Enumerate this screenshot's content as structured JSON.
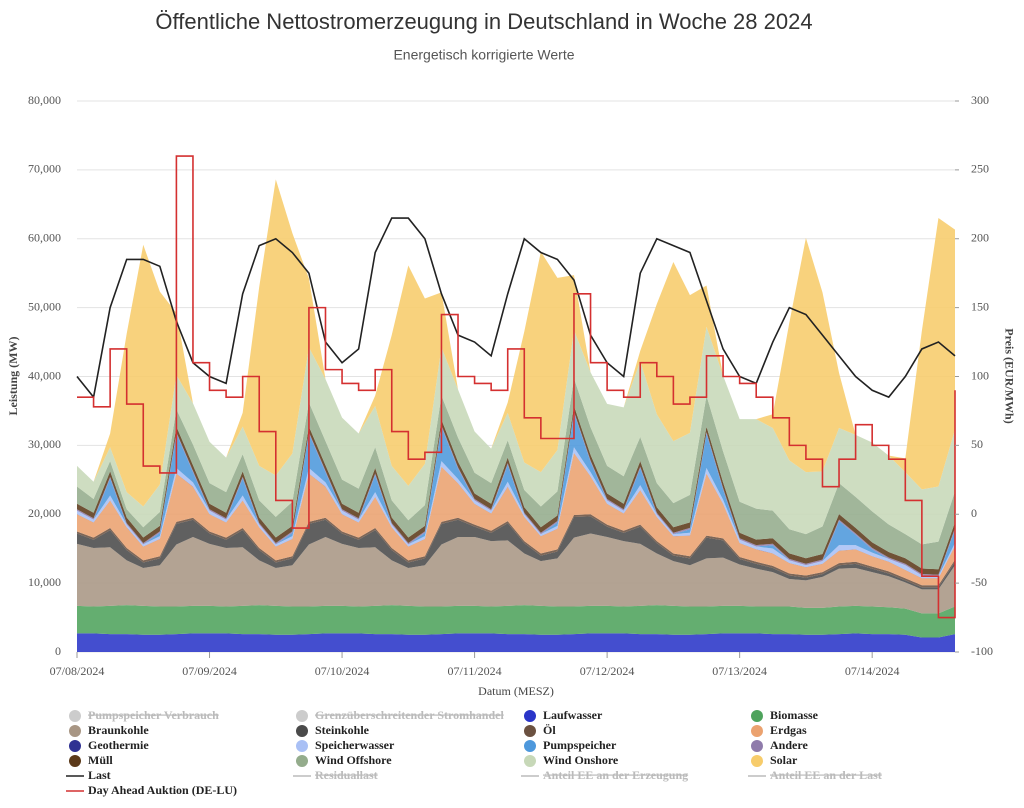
{
  "chart_data": {
    "type": "stacked-area",
    "title": "Öffentliche Nettostromerzeugung in Deutschland in Woche 28 2024",
    "subtitle": "Energetisch korrigierte Werte",
    "x_label": "Datum (MESZ)",
    "y_label": "Leistung (MW)",
    "y2_label": "Preis (EUR/MWh)",
    "x": [
      0,
      3,
      6,
      9,
      12,
      15,
      18,
      21,
      24,
      27,
      30,
      33,
      36,
      39,
      42,
      45,
      48,
      51,
      54,
      57,
      60,
      63,
      66,
      69,
      72,
      75,
      78,
      81,
      84,
      87,
      90,
      93,
      96,
      99,
      102,
      105,
      108,
      111,
      114,
      117,
      120,
      123,
      126,
      129,
      132,
      135,
      138,
      141,
      144,
      147,
      150,
      153,
      156,
      159
    ],
    "xlim": [
      0,
      159
    ],
    "xticks": [
      {
        "value": 0,
        "label": "07/08/2024"
      },
      {
        "value": 24,
        "label": "07/09/2024"
      },
      {
        "value": 48,
        "label": "07/10/2024"
      },
      {
        "value": 72,
        "label": "07/11/2024"
      },
      {
        "value": 96,
        "label": "07/12/2024"
      },
      {
        "value": 120,
        "label": "07/13/2024"
      },
      {
        "value": 144,
        "label": "07/14/2024"
      }
    ],
    "ylim": [
      0,
      80000
    ],
    "yticks": [
      0,
      {
        "value": 10000,
        "label": "10,000"
      },
      {
        "value": 20000,
        "label": "20,000"
      },
      {
        "value": 30000,
        "label": "30,000"
      },
      {
        "value": 40000,
        "label": "40,000"
      },
      {
        "value": 50000,
        "label": "50,000"
      },
      {
        "value": 60000,
        "label": "60,000"
      },
      {
        "value": 70000,
        "label": "70,000"
      },
      {
        "value": 80000,
        "label": "80,000"
      }
    ],
    "y2lim": [
      -100,
      300
    ],
    "y2ticks": [
      -100,
      -50,
      0,
      50,
      100,
      150,
      200,
      250,
      300
    ],
    "grid": true,
    "series": [
      {
        "name": "Pumpspeicher Verbrauch",
        "color": "#cccccc",
        "visible": false
      },
      {
        "name": "Grenzüberschreitender Stromhandel",
        "color": "#cccccc",
        "visible": false
      },
      {
        "name": "Laufwasser",
        "color": "#2a35c8",
        "kind": "area",
        "values": [
          2700,
          2700,
          2600,
          2600,
          2500,
          2500,
          2600,
          2700,
          2700,
          2700,
          2600,
          2600,
          2500,
          2500,
          2600,
          2700,
          2700,
          2700,
          2600,
          2600,
          2500,
          2500,
          2600,
          2700,
          2700,
          2700,
          2600,
          2600,
          2500,
          2500,
          2600,
          2700,
          2700,
          2700,
          2600,
          2600,
          2500,
          2500,
          2600,
          2700,
          2700,
          2700,
          2600,
          2600,
          2500,
          2500,
          2600,
          2700,
          2600,
          2600,
          2500,
          2100,
          2100,
          2600
        ]
      },
      {
        "name": "Biomasse",
        "color": "#4ea35c",
        "kind": "area",
        "values": [
          4000,
          3900,
          4100,
          4200,
          4200,
          4100,
          4000,
          4000,
          4000,
          3900,
          4100,
          4200,
          4200,
          4100,
          4000,
          4000,
          4000,
          3900,
          4100,
          4200,
          4200,
          4100,
          4000,
          4000,
          4000,
          3900,
          4100,
          4200,
          4200,
          4100,
          4000,
          4000,
          4000,
          3900,
          4100,
          4200,
          4200,
          4100,
          4000,
          4000,
          4000,
          3900,
          4000,
          4000,
          3900,
          3900,
          4000,
          4000,
          4000,
          3900,
          3800,
          3500,
          3500,
          4000
        ]
      },
      {
        "name": "Braunkohle",
        "color": "#a89684",
        "kind": "area",
        "values": [
          9000,
          8500,
          8500,
          6500,
          5500,
          6000,
          9000,
          10000,
          9000,
          8500,
          8500,
          6500,
          5500,
          6000,
          9000,
          10000,
          9000,
          8500,
          8500,
          6500,
          5500,
          6000,
          9000,
          10000,
          10000,
          9500,
          9500,
          7500,
          6500,
          7000,
          10000,
          10500,
          10000,
          9500,
          9000,
          7500,
          6500,
          6000,
          7000,
          7000,
          6000,
          5500,
          5000,
          4000,
          4000,
          4500,
          5500,
          5500,
          5000,
          4500,
          3800,
          3500,
          3500,
          6000
        ]
      },
      {
        "name": "Steinkohle",
        "color": "#4a4a4a",
        "kind": "area",
        "values": [
          1500,
          1200,
          2500,
          1500,
          800,
          1000,
          3000,
          2500,
          1500,
          1200,
          2500,
          1500,
          800,
          1000,
          3000,
          2500,
          1500,
          1200,
          2500,
          1500,
          800,
          1000,
          3000,
          2500,
          1500,
          1200,
          2500,
          1500,
          800,
          1000,
          3000,
          2500,
          1500,
          1200,
          2500,
          1500,
          800,
          1000,
          3000,
          2500,
          800,
          700,
          600,
          500,
          400,
          400,
          500,
          600,
          500,
          400,
          300,
          300,
          300,
          500
        ]
      },
      {
        "name": "Öl",
        "color": "#6b5140",
        "kind": "area",
        "values": [
          300,
          300,
          300,
          300,
          300,
          300,
          300,
          300,
          300,
          300,
          300,
          300,
          300,
          300,
          300,
          300,
          300,
          300,
          300,
          300,
          300,
          300,
          300,
          300,
          300,
          300,
          300,
          300,
          300,
          300,
          300,
          300,
          300,
          300,
          300,
          300,
          300,
          300,
          300,
          300,
          300,
          300,
          300,
          300,
          300,
          300,
          300,
          300,
          300,
          300,
          300,
          300,
          300,
          300
        ]
      },
      {
        "name": "Erdgas",
        "color": "#eba26f",
        "kind": "area",
        "values": [
          2500,
          2200,
          4000,
          3000,
          2000,
          2500,
          7000,
          4500,
          2500,
          2200,
          4000,
          3000,
          2000,
          2500,
          7000,
          4500,
          2500,
          2200,
          4500,
          3000,
          2000,
          2500,
          8000,
          5000,
          3000,
          2500,
          5000,
          3500,
          2500,
          3000,
          9000,
          5500,
          3000,
          2500,
          5000,
          3500,
          2500,
          3000,
          9000,
          5000,
          2000,
          1800,
          1800,
          1500,
          1200,
          1200,
          1800,
          1800,
          1500,
          1400,
          1200,
          1000,
          1000,
          2000
        ]
      },
      {
        "name": "Geothermie",
        "color": "#2f3192",
        "kind": "area",
        "values": [
          20,
          20,
          20,
          20,
          20,
          20,
          20,
          20,
          20,
          20,
          20,
          20,
          20,
          20,
          20,
          20,
          20,
          20,
          20,
          20,
          20,
          20,
          20,
          20,
          20,
          20,
          20,
          20,
          20,
          20,
          20,
          20,
          20,
          20,
          20,
          20,
          20,
          20,
          20,
          20,
          20,
          20,
          20,
          20,
          20,
          20,
          20,
          20,
          20,
          20,
          20,
          20,
          20,
          20
        ]
      },
      {
        "name": "Speicherwasser",
        "color": "#a9c0f5",
        "kind": "area",
        "values": [
          500,
          400,
          700,
          400,
          300,
          400,
          800,
          600,
          500,
          400,
          700,
          400,
          300,
          400,
          800,
          600,
          500,
          400,
          700,
          400,
          300,
          400,
          800,
          600,
          500,
          400,
          700,
          400,
          300,
          400,
          800,
          600,
          500,
          400,
          700,
          400,
          300,
          400,
          800,
          600,
          500,
          400,
          700,
          400,
          300,
          400,
          800,
          600,
          500,
          400,
          700,
          400,
          300,
          400
        ]
      },
      {
        "name": "Pumpspeicher",
        "color": "#4d98dc",
        "kind": "area",
        "values": [
          0,
          0,
          2500,
          0,
          0,
          500,
          5000,
          1500,
          0,
          0,
          2500,
          0,
          0,
          500,
          5000,
          1500,
          0,
          0,
          2500,
          0,
          0,
          500,
          5000,
          1500,
          0,
          0,
          2500,
          0,
          0,
          500,
          5000,
          1500,
          0,
          0,
          2500,
          0,
          0,
          500,
          5000,
          1500,
          0,
          0,
          500,
          0,
          0,
          0,
          3500,
          1500,
          500,
          0,
          0,
          0,
          0,
          2000
        ]
      },
      {
        "name": "Andere",
        "color": "#8f7bab",
        "kind": "area",
        "values": [
          200,
          200,
          200,
          200,
          200,
          200,
          200,
          200,
          200,
          200,
          200,
          200,
          200,
          200,
          200,
          200,
          200,
          200,
          200,
          200,
          200,
          200,
          200,
          200,
          200,
          200,
          200,
          200,
          200,
          200,
          200,
          200,
          200,
          200,
          200,
          200,
          200,
          200,
          200,
          200,
          200,
          200,
          200,
          200,
          200,
          200,
          200,
          200,
          200,
          200,
          200,
          200,
          200,
          200
        ]
      },
      {
        "name": "Müll",
        "color": "#5c3a1a",
        "kind": "area",
        "values": [
          800,
          800,
          800,
          800,
          800,
          800,
          800,
          800,
          800,
          800,
          800,
          800,
          800,
          800,
          800,
          800,
          800,
          800,
          800,
          800,
          800,
          800,
          800,
          800,
          800,
          800,
          800,
          800,
          800,
          800,
          800,
          800,
          800,
          800,
          800,
          800,
          800,
          800,
          800,
          800,
          800,
          800,
          800,
          800,
          800,
          800,
          800,
          800,
          800,
          800,
          800,
          800,
          800,
          800
        ]
      },
      {
        "name": "Wind Offshore",
        "color": "#94ac8c",
        "kind": "area",
        "values": [
          2500,
          2000,
          1500,
          1200,
          1500,
          2000,
          2500,
          3000,
          3000,
          3000,
          2500,
          2500,
          3000,
          3500,
          3500,
          3500,
          3500,
          3500,
          3000,
          2500,
          2500,
          3000,
          3500,
          3500,
          3000,
          3000,
          2500,
          2500,
          3000,
          3500,
          4000,
          4000,
          4000,
          4000,
          3500,
          3500,
          3500,
          4000,
          4500,
          4500,
          4500,
          4500,
          4000,
          3500,
          3500,
          4000,
          4500,
          4500,
          4500,
          4000,
          3500,
          3500,
          4000,
          4500
        ]
      },
      {
        "name": "Wind Onshore",
        "color": "#c7d8b8",
        "kind": "area",
        "values": [
          3000,
          2500,
          2000,
          2500,
          3000,
          4000,
          5000,
          6000,
          6000,
          5000,
          4000,
          5000,
          6000,
          7000,
          8000,
          9000,
          9000,
          8000,
          6000,
          5000,
          5000,
          6000,
          7000,
          7000,
          6000,
          5000,
          4000,
          4000,
          5000,
          6000,
          7000,
          8000,
          9000,
          10000,
          11000,
          10000,
          9000,
          9000,
          10000,
          11000,
          12000,
          13000,
          12000,
          10000,
          9000,
          8000,
          8000,
          9000,
          10000,
          10000,
          9000,
          8000,
          8000,
          9000
        ]
      },
      {
        "name": "Solar",
        "color": "#f7cc6b",
        "kind": "area",
        "values": [
          0,
          0,
          2000,
          23000,
          38000,
          28000,
          9000,
          0,
          0,
          0,
          2000,
          26000,
          43000,
          32000,
          10000,
          0,
          0,
          0,
          1500,
          19000,
          32000,
          24000,
          8000,
          0,
          0,
          0,
          1500,
          19000,
          32000,
          25000,
          8000,
          0,
          0,
          0,
          1500,
          16000,
          26000,
          20000,
          6000,
          0,
          0,
          0,
          2000,
          20000,
          34000,
          26000,
          8000,
          0,
          0,
          0,
          2000,
          23000,
          39000,
          29000
        ]
      },
      {
        "name": "Last",
        "color": "#222222",
        "kind": "line",
        "values": [
          40000,
          37000,
          50000,
          57000,
          57000,
          56000,
          48000,
          42000,
          40000,
          39000,
          52000,
          59000,
          60000,
          58000,
          55000,
          45000,
          42000,
          44000,
          58000,
          63000,
          63000,
          60000,
          52000,
          46000,
          45000,
          43000,
          52000,
          60000,
          58000,
          57000,
          54000,
          46000,
          42000,
          40000,
          55000,
          60000,
          59000,
          58000,
          51000,
          44000,
          40000,
          39000,
          45000,
          50000,
          49000,
          46000,
          43000,
          40000,
          38000,
          37000,
          40000,
          44000,
          45000,
          43000
        ]
      },
      {
        "name": "Residuallast",
        "color": "#cccccc",
        "visible": false
      },
      {
        "name": "Anteil EE an der Erzeugung",
        "color": "#cccccc",
        "visible": false
      },
      {
        "name": "Anteil EE an der Last",
        "color": "#cccccc",
        "visible": false
      },
      {
        "name": "Day Ahead Auktion (DE-LU)",
        "color": "#d43030",
        "kind": "step",
        "axis": "y2",
        "values": [
          85,
          78,
          120,
          80,
          35,
          30,
          260,
          110,
          90,
          85,
          100,
          60,
          10,
          -10,
          150,
          105,
          95,
          90,
          105,
          60,
          40,
          45,
          145,
          100,
          95,
          90,
          120,
          70,
          55,
          55,
          160,
          110,
          90,
          85,
          110,
          100,
          80,
          85,
          115,
          100,
          95,
          85,
          70,
          50,
          40,
          20,
          40,
          65,
          50,
          40,
          10,
          -45,
          -75,
          90
        ]
      }
    ]
  }
}
